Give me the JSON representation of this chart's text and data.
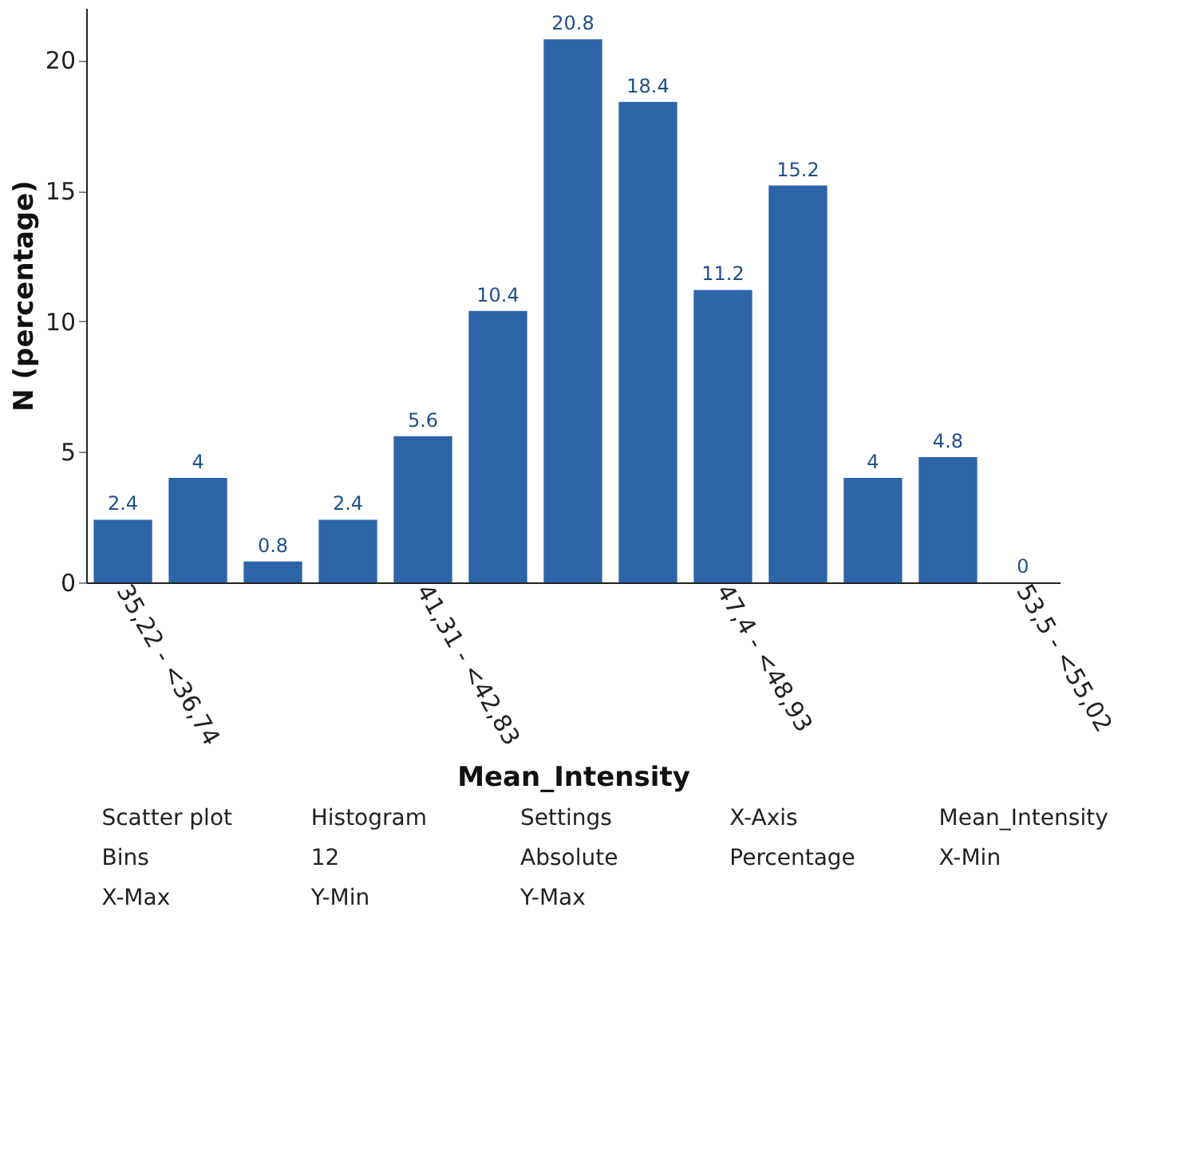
{
  "chart_data": {
    "type": "bar",
    "xlabel": "Mean_Intensity",
    "ylabel": "N (percentage)",
    "categories": [
      "35,22 - <36,74",
      null,
      null,
      null,
      "41,31 - <42,83",
      null,
      null,
      null,
      "47,4 - <48,93",
      null,
      null,
      null,
      "53,5 - <55,02"
    ],
    "values": [
      2.4,
      4,
      0.8,
      2.4,
      5.6,
      10.4,
      20.8,
      18.4,
      11.2,
      15.2,
      4,
      4.8,
      0
    ],
    "color": "#2d64a8",
    "ylim": [
      0,
      22
    ],
    "yticks": [
      0,
      5,
      10,
      15,
      20
    ],
    "grid": false,
    "data_labels": true,
    "annotations": [
      "Scatter plot",
      "Histogram",
      "Settings",
      "X-Axis",
      "Mean_Intensity",
      "Bins",
      "12",
      "Absolute",
      "Percentage",
      "X-Min",
      "X-Max",
      "Y-Min",
      "Y-Max"
    ]
  }
}
